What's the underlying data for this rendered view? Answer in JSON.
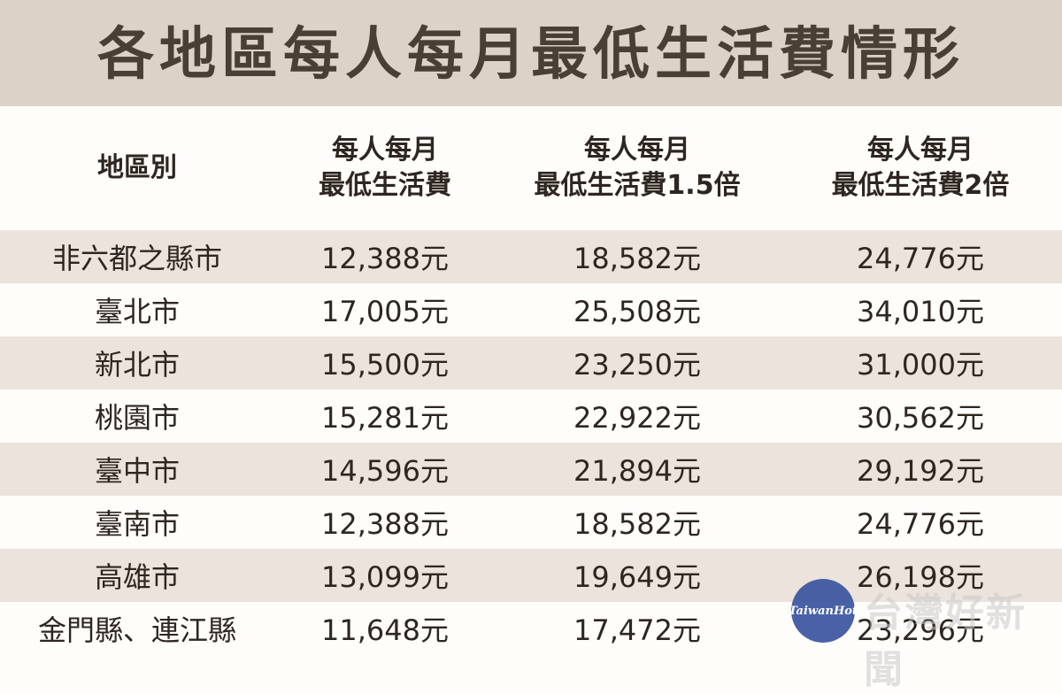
{
  "title": "各地區每人每月最低生活費情形",
  "headers": [
    {
      "line1": "地區別",
      "line2": ""
    },
    {
      "line1": "每人每月",
      "line2": "最低生活費"
    },
    {
      "line1": "每人每月",
      "line2": "最低生活費1.5倍"
    },
    {
      "line1": "每人每月",
      "line2": "最低生活費2倍"
    }
  ],
  "rows": [
    {
      "region": "非六都之縣市",
      "base": "12,388元",
      "x15": "18,582元",
      "x2": "24,776元"
    },
    {
      "region": "臺北市",
      "base": "17,005元",
      "x15": "25,508元",
      "x2": "34,010元"
    },
    {
      "region": "新北市",
      "base": "15,500元",
      "x15": "23,250元",
      "x2": "31,000元"
    },
    {
      "region": "桃園市",
      "base": "15,281元",
      "x15": "22,922元",
      "x2": "30,562元"
    },
    {
      "region": "臺中市",
      "base": "14,596元",
      "x15": "21,894元",
      "x2": "29,192元"
    },
    {
      "region": "臺南市",
      "base": "12,388元",
      "x15": "18,582元",
      "x2": "24,776元"
    },
    {
      "region": "高雄市",
      "base": "13,099元",
      "x15": "19,649元",
      "x2": "26,198元"
    },
    {
      "region": "金門縣、連江縣",
      "base": "11,648元",
      "x15": "17,472元",
      "x2": "23,296元"
    }
  ],
  "watermark": {
    "logo": "TaiwanHot",
    "text": "台灣好新聞"
  },
  "colors": {
    "title_bg": "#dcd2c8",
    "row_shaded": "#ebe3dc",
    "row_plain": "#fffdfa",
    "text": "#2e2620"
  }
}
